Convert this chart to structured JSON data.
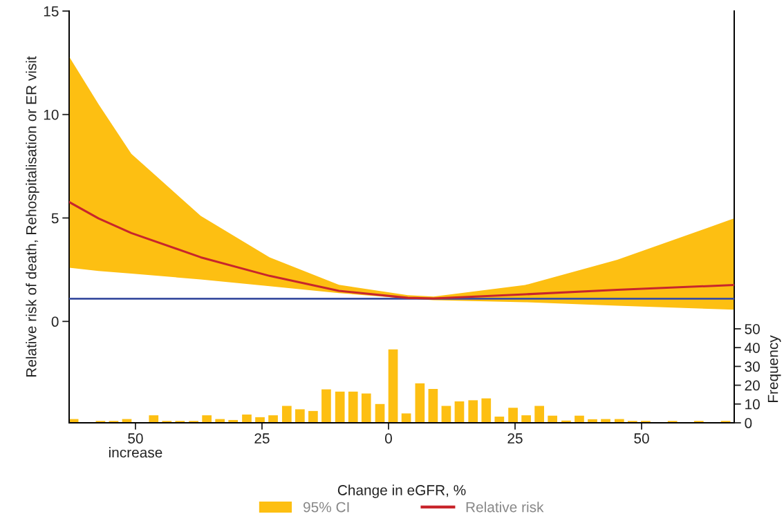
{
  "chart_data": {
    "type": "line",
    "xlabel": "Change in eGFR, %",
    "ylabel": "Relative risk of death, Rehospitalisation or ER visit",
    "y2label": "Frequency",
    "xlim": [
      -63.1,
      68.3
    ],
    "xticks": [
      {
        "value": -50,
        "label": "50"
      },
      {
        "value": -25,
        "label": "25"
      },
      0,
      25,
      50
    ],
    "ylim": [
      -4.9,
      15
    ],
    "yticks": [
      0,
      5,
      10,
      15
    ],
    "y2lim": [
      0,
      219
    ],
    "y2ticks": [
      0,
      10,
      20,
      30,
      40,
      50
    ],
    "legend": "bottom",
    "grid": false,
    "annotations": [
      "increase",
      "95% CI"
    ],
    "ref_lines": [
      {
        "axis": "y",
        "value": 1.1,
        "color": "#3a4ea0",
        "line_style": "solid"
      }
    ],
    "series": [
      {
        "name": "Relative risk",
        "color": "#c8262c",
        "x": [
          -63.1,
          -57.3,
          -50.8,
          -37.1,
          -23.5,
          -9.8,
          3.8,
          8.9,
          27,
          45.2,
          68.3
        ],
        "values": [
          5.77,
          4.98,
          4.27,
          3.1,
          2.2,
          1.48,
          1.14,
          1.11,
          1.31,
          1.53,
          1.76
        ],
        "upper": [
          12.8,
          10.5,
          8.1,
          5.1,
          3.1,
          1.77,
          1.27,
          1.2,
          1.76,
          2.98,
          4.98
        ],
        "lower": [
          2.6,
          2.44,
          2.31,
          2.03,
          1.7,
          1.37,
          1.1,
          1.03,
          0.93,
          0.76,
          0.57
        ]
      },
      {
        "type": "bar",
        "axis": "y2",
        "color": "#fdbf12",
        "x": [
          -62.2,
          -59.6,
          -56.9,
          -54.3,
          -51.7,
          -49.0,
          -46.4,
          -43.8,
          -41.2,
          -38.5,
          -35.9,
          -33.3,
          -30.7,
          -28.0,
          -25.4,
          -22.8,
          -20.1,
          -17.5,
          -14.9,
          -12.3,
          -9.6,
          -7.0,
          -4.4,
          -1.7,
          0.9,
          3.5,
          6.2,
          8.8,
          11.4,
          14.0,
          16.7,
          19.3,
          21.9,
          24.6,
          27.2,
          29.8,
          32.4,
          35.1,
          37.7,
          40.3,
          42.9,
          45.6,
          48.2,
          50.8,
          53.5,
          56.1,
          58.7,
          61.3,
          64.0,
          66.6
        ],
        "values": [
          2,
          0,
          1,
          1,
          2,
          0,
          4,
          1,
          1,
          1,
          4,
          2,
          1.5,
          4.4,
          3,
          4,
          9,
          7.2,
          6.3,
          17.8,
          16.6,
          16.6,
          15.6,
          10,
          39,
          5,
          21,
          18,
          9,
          11.4,
          12,
          13,
          3.3,
          8,
          4,
          9,
          3.8,
          1.2,
          3.8,
          1.9,
          2,
          2,
          1,
          1,
          0,
          1,
          0,
          1,
          0,
          1
        ]
      }
    ]
  }
}
